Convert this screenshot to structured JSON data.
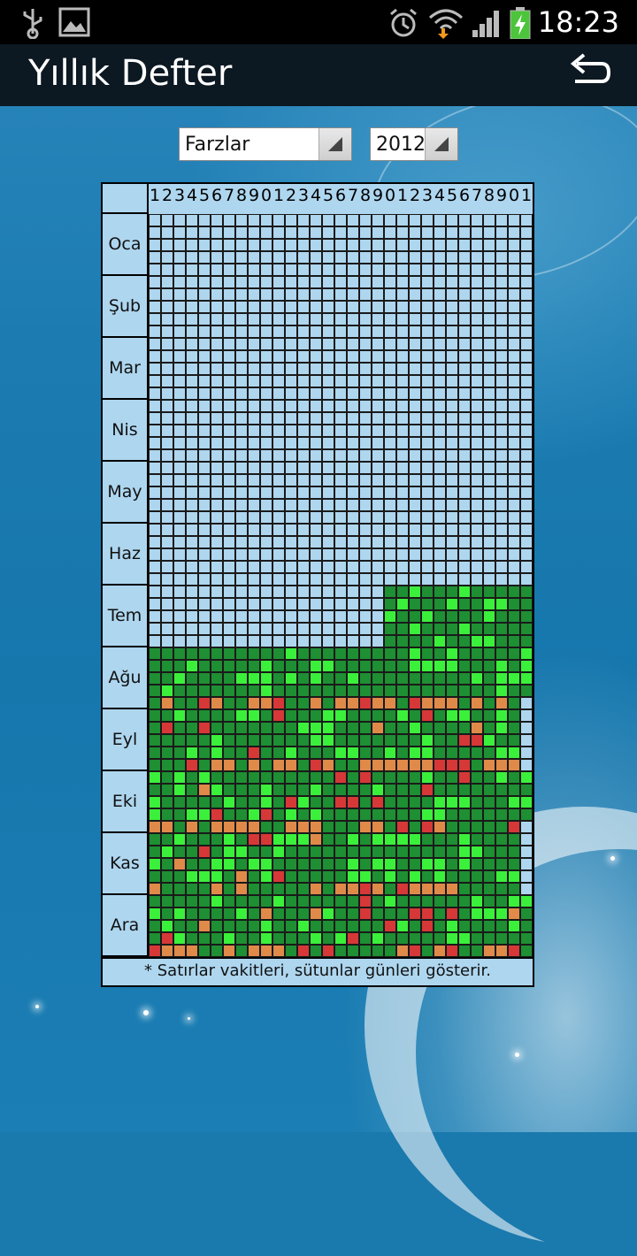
{
  "status_bar": {
    "time": "18:23"
  },
  "app": {
    "title": "Yıllık Defter"
  },
  "filters": {
    "category": "Farzlar",
    "year": "2012"
  },
  "grid": {
    "day_labels": [
      "1",
      "2",
      "3",
      "4",
      "5",
      "6",
      "7",
      "8",
      "9",
      "0",
      "1",
      "2",
      "3",
      "4",
      "5",
      "6",
      "7",
      "8",
      "9",
      "0",
      "1",
      "2",
      "3",
      "4",
      "5",
      "6",
      "7",
      "8",
      "9",
      "0",
      "1"
    ],
    "months": [
      "Oca",
      "Şub",
      "Mar",
      "Nis",
      "May",
      "Haz",
      "Tem",
      "Ağu",
      "Eyl",
      "Eki",
      "Kas",
      "Ara"
    ],
    "rows_per_month": 5,
    "footnote": "* Satırlar vakitleri, sütunlar günleri gösterir."
  },
  "legend_colors": {
    "empty": "#aed6ef",
    "dark_green": "#1e8f33",
    "light_green": "#3bf03b",
    "orange": "#e08a4a",
    "red": "#d63838"
  }
}
